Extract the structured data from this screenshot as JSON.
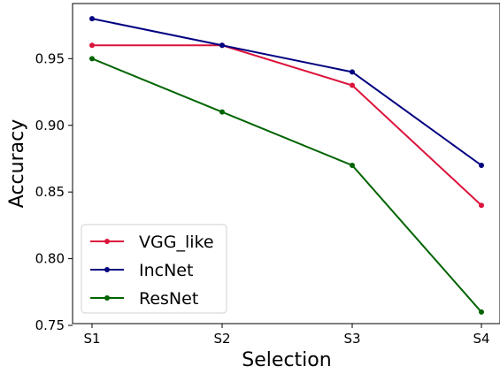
{
  "chart_data": {
    "type": "line",
    "categories": [
      "S1",
      "S2",
      "S3",
      "S4"
    ],
    "series": [
      {
        "name": "VGG_like",
        "color": "#dc143c",
        "values": [
          0.96,
          0.96,
          0.93,
          0.84
        ]
      },
      {
        "name": "IncNet",
        "color": "#000080",
        "values": [
          0.98,
          0.96,
          0.94,
          0.87
        ]
      },
      {
        "name": "ResNet",
        "color": "#006400",
        "values": [
          0.95,
          0.91,
          0.87,
          0.76
        ]
      }
    ],
    "xlabel": "Selection",
    "ylabel": "Accuracy",
    "ylim": [
      0.75,
      0.99
    ],
    "yticks": [
      "0.75",
      "0.80",
      "0.85",
      "0.90",
      "0.95"
    ],
    "grid": false,
    "legend_position": "lower-left"
  }
}
